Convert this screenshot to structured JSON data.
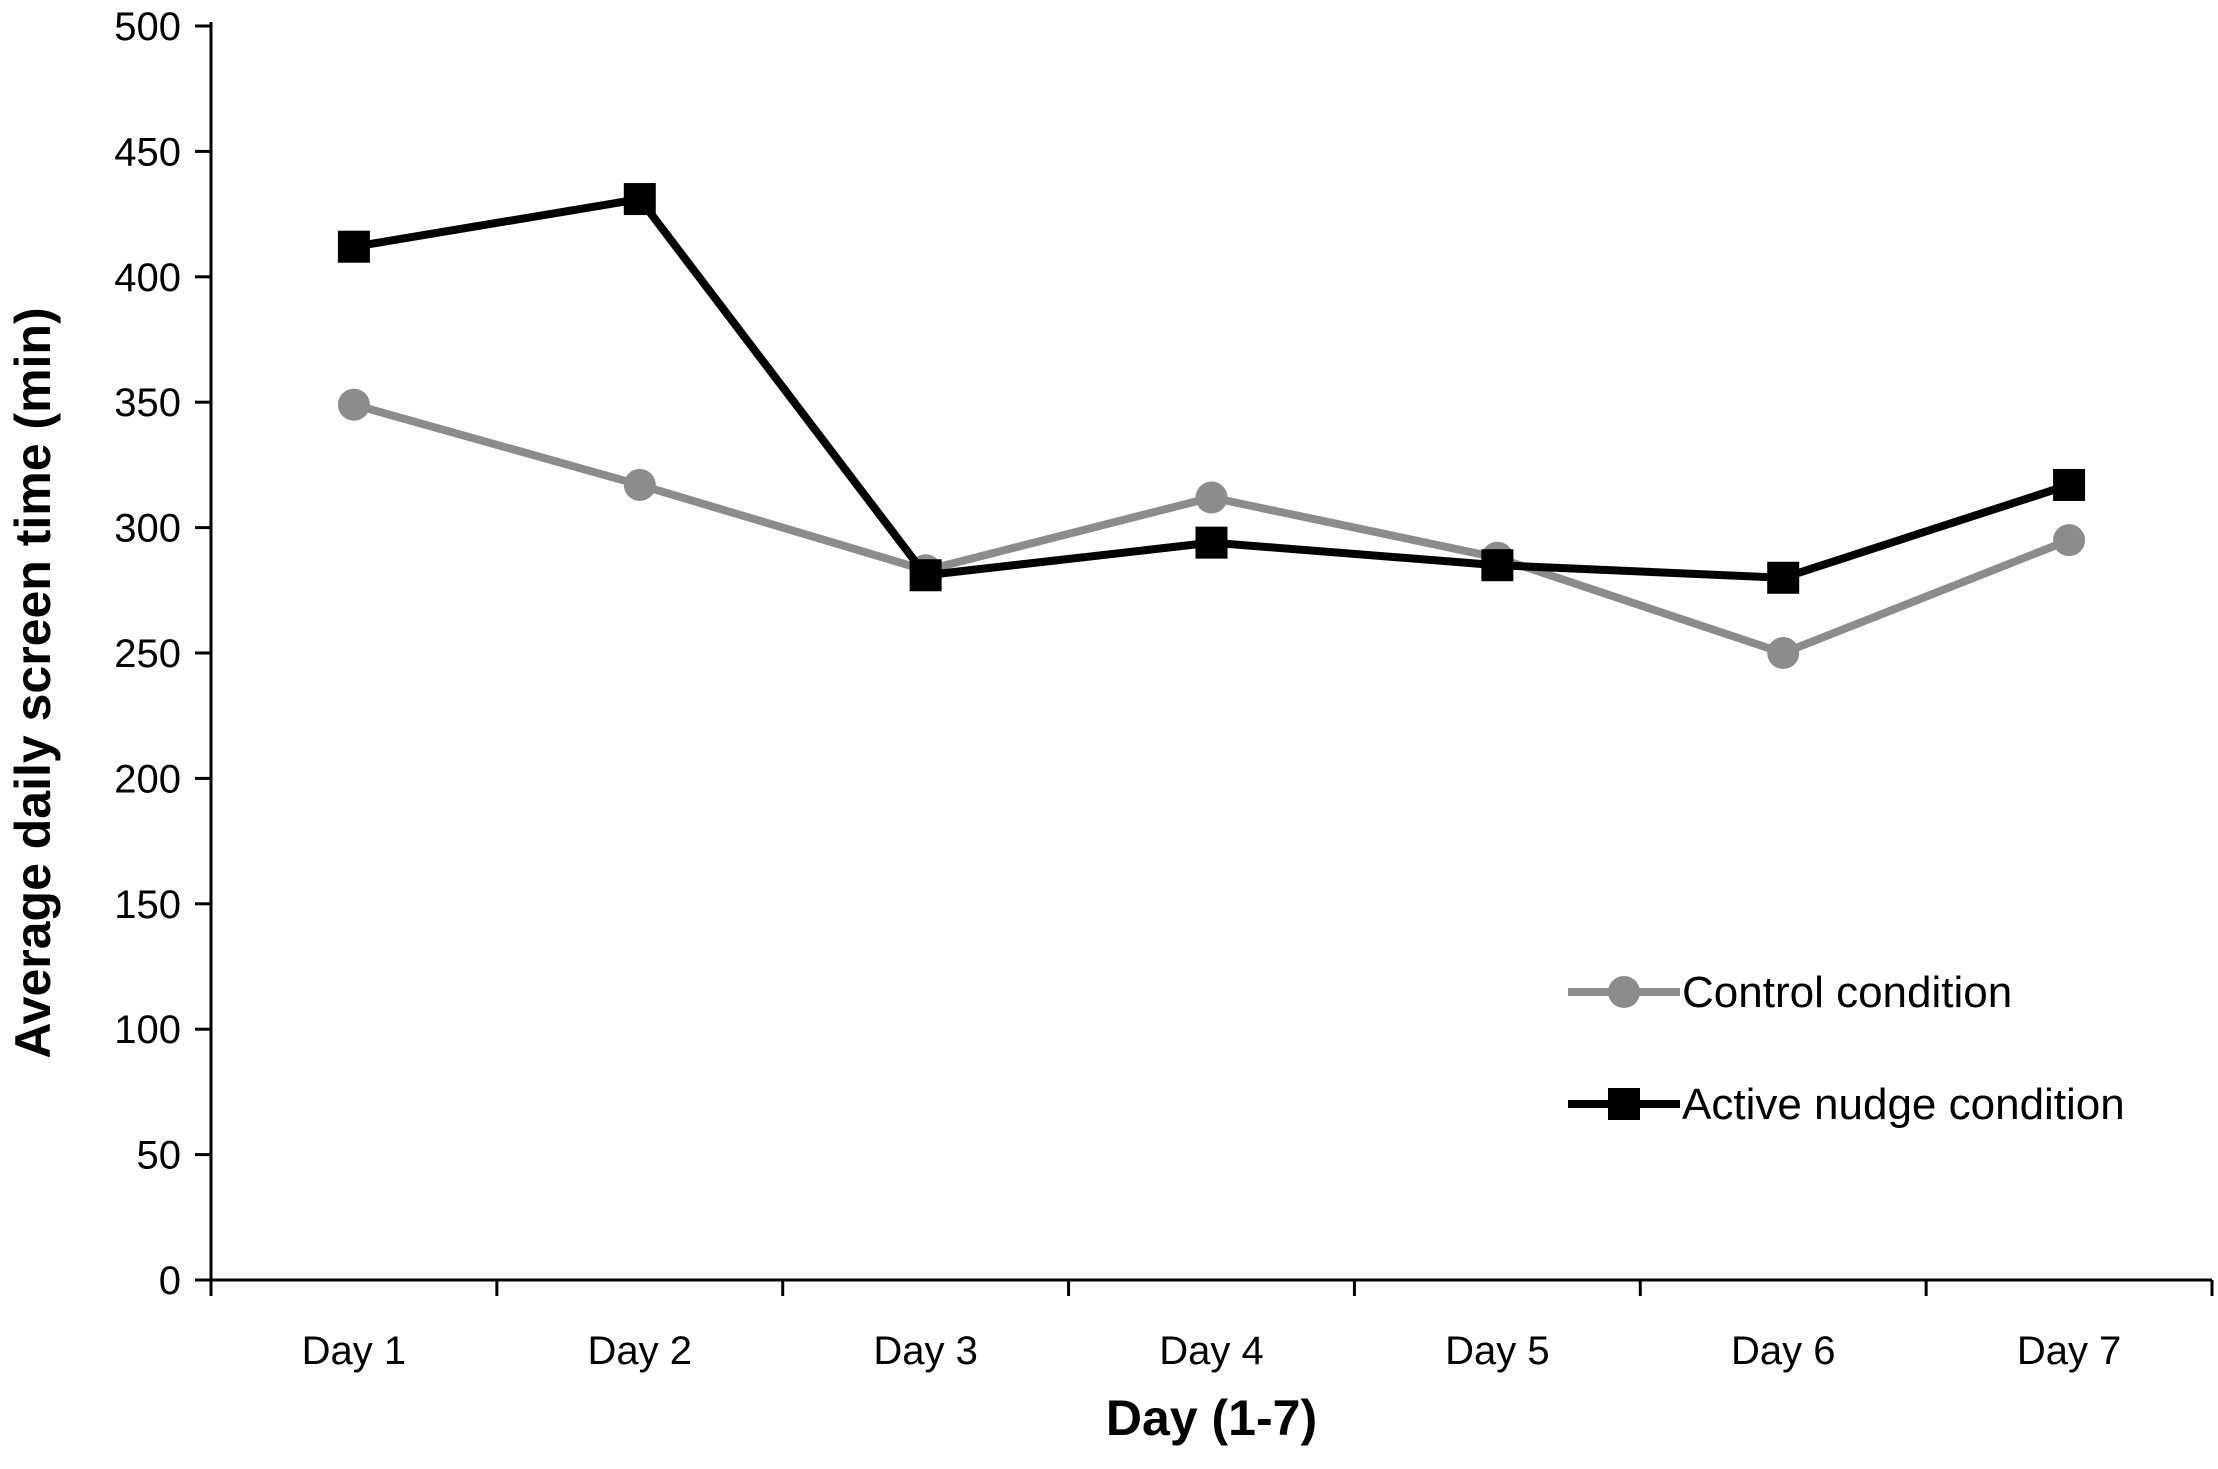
{
  "chart_data": {
    "type": "line",
    "title": "",
    "xlabel": "Day (1-7)",
    "ylabel": "Average daily screen time (min)",
    "categories": [
      "Day 1",
      "Day 2",
      "Day 3",
      "Day 4",
      "Day 5",
      "Day 6",
      "Day 7"
    ],
    "ylim": [
      0,
      500
    ],
    "yticks": [
      0,
      50,
      100,
      150,
      200,
      250,
      300,
      350,
      400,
      450,
      500
    ],
    "grid": false,
    "legend_position": "bottom-right",
    "series": [
      {
        "name": "Control condition",
        "color": "#8c8c8c",
        "marker": "circle",
        "values": [
          349,
          317,
          283,
          312,
          288,
          250,
          295
        ]
      },
      {
        "name": "Active nudge condition",
        "color": "#000000",
        "marker": "square",
        "values": [
          412,
          431,
          281,
          294,
          285,
          280,
          317
        ]
      }
    ]
  }
}
